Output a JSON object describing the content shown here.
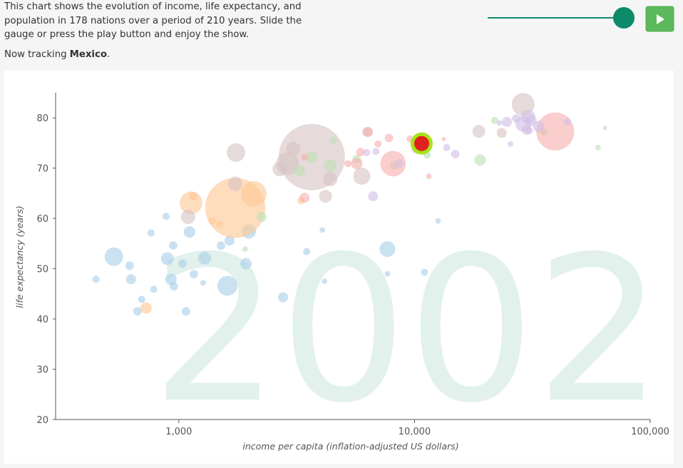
{
  "intro": "This chart shows the evolution of income, life expectancy, and population in 178 nations over a period of 210 years. Slide the gauge or press the play button and enjoy the show.",
  "tracking_prefix": "Now tracking",
  "tracking_country": "Mexico",
  "tracking_suffix": ".",
  "chart_data": {
    "type": "scatter",
    "year": "2002",
    "x_label": "income per capita (inflation-adjusted US dollars)",
    "y_label": "life expectancy (years)",
    "xscale": "log",
    "xlim": [
      300,
      100000
    ],
    "ylim": [
      20,
      85
    ],
    "xticks": [
      {
        "value": 1000,
        "label": "1,000"
      },
      {
        "value": 10000,
        "label": "10,000"
      },
      {
        "value": 100000,
        "label": "100,000"
      }
    ],
    "yticks": [
      20,
      30,
      40,
      50,
      60,
      70,
      80
    ],
    "series": [
      {
        "color": "#a9cfe9",
        "x": [
          1607,
          530,
          7674,
          1982,
          445,
          618,
          627,
          667,
          696,
          783,
          762,
          882,
          894,
          926,
          946,
          952,
          1072,
          1110,
          1158,
          1036,
          1286,
          1268,
          1641,
          1509,
          1927,
          2768,
          3486,
          4064,
          4150,
          7674,
          11020,
          12590
        ],
        "values": [
          46.6,
          52.4,
          53.9,
          57.4,
          47.9,
          50.6,
          47.9,
          41.5,
          43.9,
          45.9,
          57.1,
          60.4,
          52.0,
          47.9,
          54.6,
          46.5,
          41.5,
          57.3,
          48.9,
          51.0,
          52.1,
          47.2,
          55.6,
          54.6,
          51.0,
          44.3,
          53.4,
          57.7,
          47.5,
          49.0,
          49.3,
          59.5
        ],
        "sizes": [
          116,
          100,
          72,
          59,
          15,
          21,
          29,
          21,
          15,
          15,
          15,
          15,
          48,
          38,
          21,
          21,
          21,
          38,
          21,
          21,
          48,
          9,
          29,
          21,
          38,
          29,
          15,
          9,
          9,
          9,
          15,
          9
        ]
      },
      {
        "color": "#fdc894",
        "x": [
          1735,
          1127,
          2080,
          726,
          1387,
          1150,
          3296,
          1489
        ],
        "values": [
          62.1,
          63.1,
          64.9,
          42.2,
          59.5,
          64.4,
          63.5,
          58.8
        ],
        "sizes": [
          1050,
          150,
          190,
          38,
          15,
          21,
          15,
          15
        ]
      },
      {
        "color": "#d7c4c3",
        "x": [
          3664,
          2890,
          28900,
          1747,
          5970,
          1735,
          1095,
          2678,
          3053,
          4390,
          4190,
          18740,
          23440,
          6300
        ],
        "values": [
          72.2,
          70.9,
          82.7,
          73.1,
          68.4,
          66.9,
          60.3,
          69.8,
          73.8,
          67.8,
          64.4,
          77.3,
          77.0,
          77.2
        ],
        "sizes": [
          1280,
          150,
          151,
          100,
          85,
          59,
          59,
          59,
          59,
          59,
          48,
          48,
          29,
          29
        ]
      },
      {
        "color": "#bde0b4",
        "x": [
          2248,
          3250,
          4390,
          3660,
          5688,
          8220,
          11320,
          19000,
          21860,
          35350,
          60000,
          4530,
          1910
        ],
        "values": [
          60.3,
          69.5,
          70.5,
          72.2,
          71.8,
          70.6,
          72.6,
          71.6,
          79.5,
          77.2,
          74.1,
          75.5,
          53.9
        ],
        "sizes": [
          29,
          38,
          48,
          38,
          21,
          21,
          15,
          38,
          15,
          15,
          9,
          15,
          9
        ]
      },
      {
        "color": "#f6b0ae",
        "x": [
          39540,
          8110,
          6350,
          5900,
          5690,
          7790,
          7000,
          9580,
          11500,
          3414,
          13300,
          5220,
          3414
        ],
        "values": [
          77.3,
          70.9,
          77.2,
          73.2,
          70.9,
          76.0,
          74.8,
          75.8,
          68.4,
          64.1,
          75.8,
          70.9,
          72.2
        ],
        "sizes": [
          420,
          190,
          29,
          21,
          38,
          21,
          15,
          15,
          9,
          29,
          5,
          15,
          15
        ]
      },
      {
        "color": "#d2bfe6",
        "x": [
          28900,
          30340,
          31150,
          33630,
          24650,
          29930,
          27000,
          14890,
          6670,
          8620,
          10130,
          22930,
          13700,
          44580,
          64260,
          6860,
          6270,
          30620,
          25540
        ],
        "values": [
          78.8,
          80.2,
          79.5,
          78.3,
          79.2,
          77.6,
          79.9,
          72.8,
          64.4,
          70.9,
          73.8,
          79.0,
          74.1,
          79.2,
          78.0,
          73.3,
          73.1,
          77.5,
          74.8
        ],
        "sizes": [
          72,
          59,
          38,
          38,
          29,
          29,
          21,
          21,
          29,
          21,
          21,
          9,
          15,
          15,
          5,
          15,
          15,
          15,
          9
        ]
      },
      {
        "color": "#e0201f",
        "stroke": "#a6e21a",
        "x": [
          10720
        ],
        "values": [
          74.9
        ],
        "sizes": [
          100
        ]
      }
    ]
  }
}
